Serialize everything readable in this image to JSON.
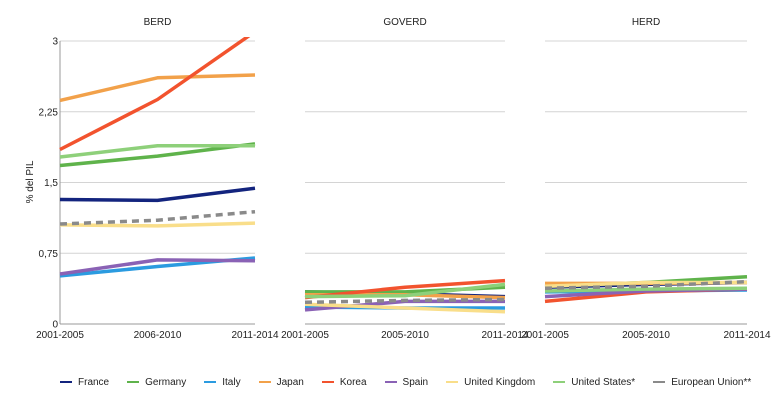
{
  "chart_data": {
    "type": "line",
    "ylabel": "% del PIL",
    "ylim": [
      0,
      3
    ],
    "yticks": [
      "0",
      "0,75",
      "1,5",
      "2,25",
      "3"
    ],
    "legend_position": "bottom",
    "panels": [
      {
        "title": "BERD",
        "x": [
          "2001-2005",
          "2006-2010",
          "2011-2014"
        ],
        "series": [
          {
            "name": "France",
            "values": [
              1.32,
              1.31,
              1.44
            ]
          },
          {
            "name": "Germany",
            "values": [
              1.68,
              1.78,
              1.91
            ]
          },
          {
            "name": "Italy",
            "values": [
              0.51,
              0.61,
              0.7
            ]
          },
          {
            "name": "Japan",
            "values": [
              2.37,
              2.61,
              2.64
            ]
          },
          {
            "name": "Korea",
            "values": [
              1.85,
              2.38,
              3.1
            ]
          },
          {
            "name": "Spain",
            "values": [
              0.53,
              0.68,
              0.67
            ]
          },
          {
            "name": "United Kingdom",
            "values": [
              1.05,
              1.04,
              1.07
            ]
          },
          {
            "name": "United States*",
            "values": [
              1.77,
              1.89,
              1.89
            ]
          },
          {
            "name": "European Union**",
            "values": [
              1.06,
              1.1,
              1.19
            ]
          }
        ]
      },
      {
        "title": "GOVERD",
        "x": [
          "2001-2005",
          "2005-2010",
          "2011-2014"
        ],
        "series": [
          {
            "name": "France",
            "values": [
              0.34,
              0.32,
              0.29
            ]
          },
          {
            "name": "Germany",
            "values": [
              0.34,
              0.34,
              0.39
            ]
          },
          {
            "name": "Italy",
            "values": [
              0.18,
              0.17,
              0.17
            ]
          },
          {
            "name": "Japan",
            "values": [
              0.31,
              0.31,
              0.28
            ]
          },
          {
            "name": "Korea",
            "values": [
              0.28,
              0.39,
              0.46
            ]
          },
          {
            "name": "Spain",
            "values": [
              0.15,
              0.24,
              0.24
            ]
          },
          {
            "name": "United Kingdom",
            "values": [
              0.21,
              0.17,
              0.13
            ]
          },
          {
            "name": "United States*",
            "values": [
              0.29,
              0.3,
              0.42
            ]
          },
          {
            "name": "European Union**",
            "values": [
              0.23,
              0.25,
              0.26
            ]
          }
        ]
      },
      {
        "title": "HERD",
        "x": [
          "2001-2005",
          "2005-2010",
          "2011-2014"
        ],
        "series": [
          {
            "name": "France",
            "values": [
              0.39,
              0.42,
              0.44
            ]
          },
          {
            "name": "Germany",
            "values": [
              0.4,
              0.44,
              0.5
            ]
          },
          {
            "name": "Italy",
            "values": [
              0.34,
              0.35,
              0.36
            ]
          },
          {
            "name": "Japan",
            "values": [
              0.43,
              0.43,
              0.44
            ]
          },
          {
            "name": "Korea",
            "values": [
              0.24,
              0.34,
              0.37
            ]
          },
          {
            "name": "Spain",
            "values": [
              0.29,
              0.35,
              0.37
            ]
          },
          {
            "name": "United Kingdom",
            "values": [
              0.4,
              0.44,
              0.44
            ]
          },
          {
            "name": "United States*",
            "values": [
              0.35,
              0.37,
              0.38
            ]
          },
          {
            "name": "European Union**",
            "values": [
              0.38,
              0.4,
              0.45
            ]
          }
        ]
      }
    ],
    "legend": [
      {
        "name": "France",
        "color": "#13247e",
        "dashed": false
      },
      {
        "name": "Germany",
        "color": "#5fb34b",
        "dashed": false
      },
      {
        "name": "Italy",
        "color": "#2b9be0",
        "dashed": false
      },
      {
        "name": "Japan",
        "color": "#f2a14a",
        "dashed": false
      },
      {
        "name": "Korea",
        "color": "#f2532e",
        "dashed": false
      },
      {
        "name": "Spain",
        "color": "#8a62b5",
        "dashed": false
      },
      {
        "name": "United Kingdom",
        "color": "#f9de8a",
        "dashed": false
      },
      {
        "name": "United States*",
        "color": "#8ed07a",
        "dashed": false
      },
      {
        "name": "European Union**",
        "color": "#8a8a8a",
        "dashed": true
      }
    ]
  }
}
